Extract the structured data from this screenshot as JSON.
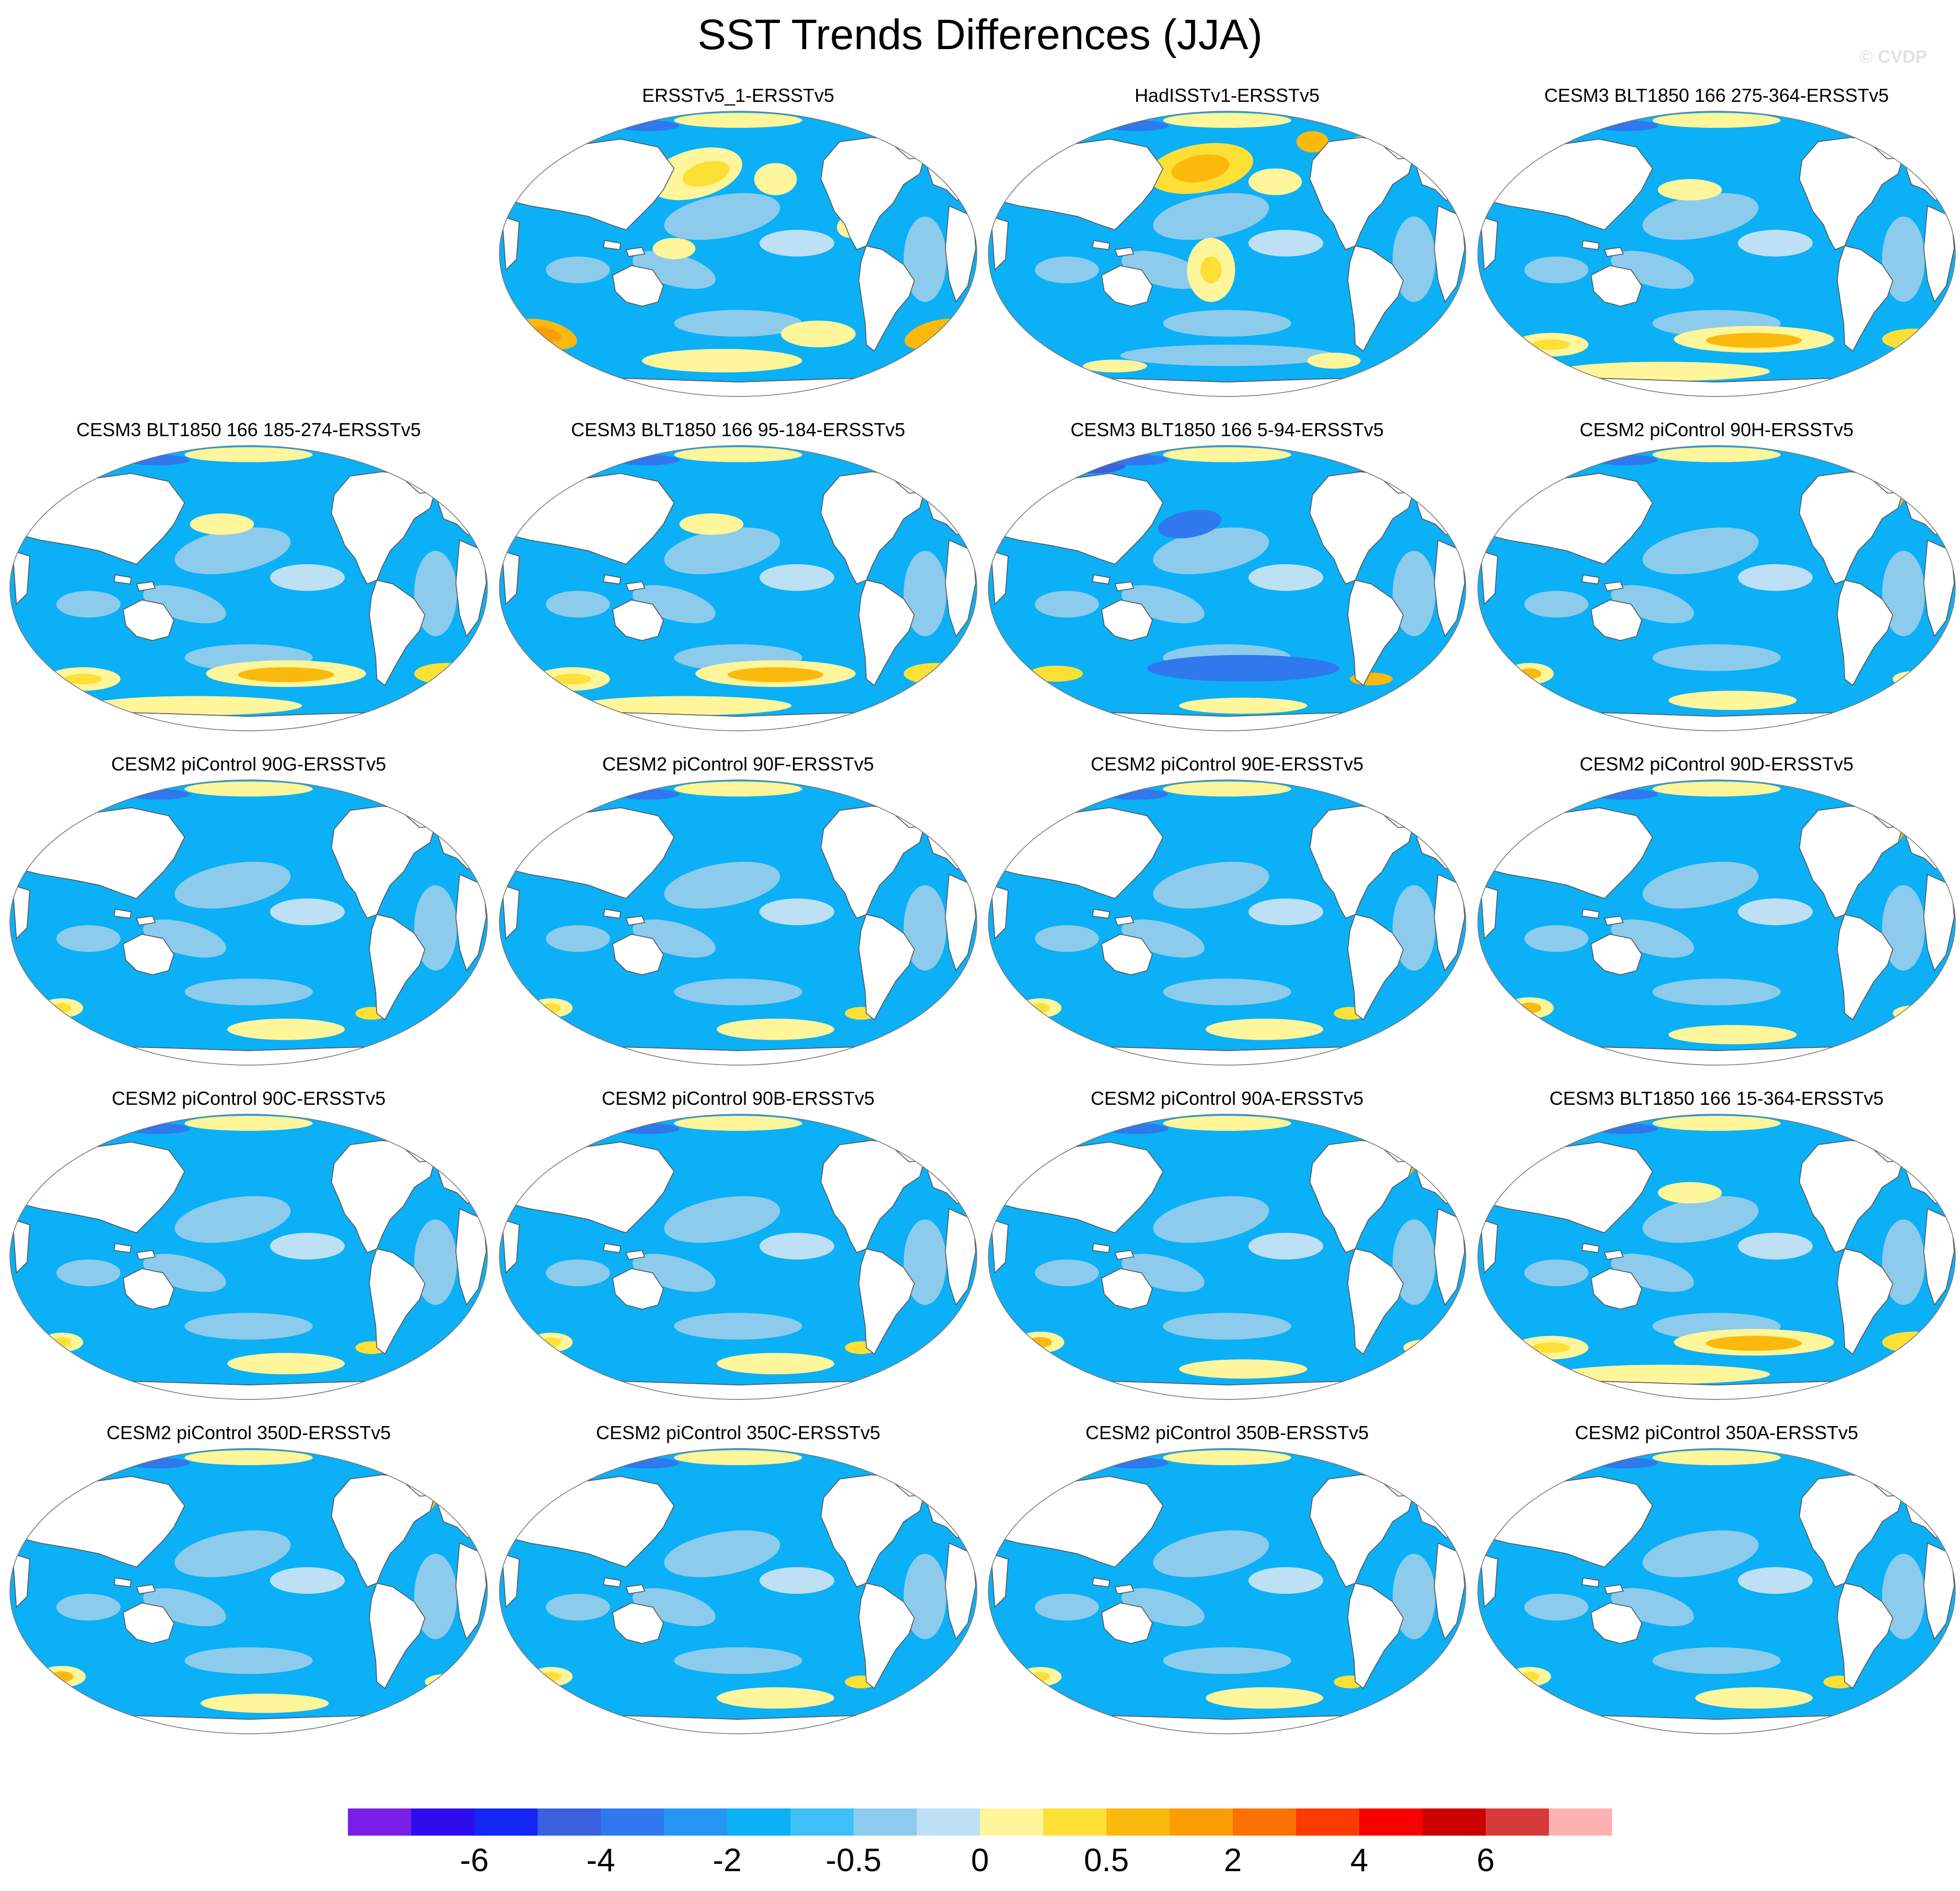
{
  "figure": {
    "title": "SST Trends Differences (JJA)",
    "watermark": "© CVDP"
  },
  "panels": [
    {
      "title": "ERSSTv5_1-ERSSTv5",
      "pattern": "ersst1"
    },
    {
      "title": "HadISSTv1-ERSSTv5",
      "pattern": "hadisst"
    },
    {
      "title": "CESM3 BLT1850 166 275-364-ERSSTv5",
      "pattern": "warmSO"
    },
    {
      "title": "CESM3 BLT1850 166 185-274-ERSSTv5",
      "pattern": "warmSO"
    },
    {
      "title": "CESM3 BLT1850 166 95-184-ERSSTv5",
      "pattern": "warmSO"
    },
    {
      "title": "CESM3 BLT1850 166 5-94-ERSSTv5",
      "pattern": "coldSO"
    },
    {
      "title": "CESM2 piControl 90H-ERSSTv5",
      "pattern": "natl"
    },
    {
      "title": "CESM2 piControl 90G-ERSSTv5",
      "pattern": "cool"
    },
    {
      "title": "CESM2 piControl 90F-ERSSTv5",
      "pattern": "cool"
    },
    {
      "title": "CESM2 piControl 90E-ERSSTv5",
      "pattern": "cool"
    },
    {
      "title": "CESM2 piControl 90D-ERSSTv5",
      "pattern": "natl"
    },
    {
      "title": "CESM2 piControl 90C-ERSSTv5",
      "pattern": "cool"
    },
    {
      "title": "CESM2 piControl 90B-ERSSTv5",
      "pattern": "cool"
    },
    {
      "title": "CESM2 piControl 90A-ERSSTv5",
      "pattern": "natl"
    },
    {
      "title": "CESM3 BLT1850 166 15-364-ERSSTv5",
      "pattern": "warmSO"
    },
    {
      "title": "CESM2 piControl 350D-ERSSTv5",
      "pattern": "natl"
    },
    {
      "title": "CESM2 piControl 350C-ERSSTv5",
      "pattern": "cool"
    },
    {
      "title": "CESM2 piControl 350B-ERSSTv5",
      "pattern": "cool"
    },
    {
      "title": "CESM2 piControl 350A-ERSSTv5",
      "pattern": "cool"
    }
  ],
  "colorbar": {
    "colors": [
      "#7b1fe8",
      "#2e0cf0",
      "#1426f5",
      "#3a5fdf",
      "#2f78ee",
      "#2596f6",
      "#0bb0f6",
      "#3cc0f6",
      "#8ccbec",
      "#bde0f4",
      "#fff59a",
      "#fde036",
      "#fbb90e",
      "#fd9d05",
      "#fd7002",
      "#fd3a00",
      "#fc0000",
      "#cc0000",
      "#d63a3a",
      "#fdb2b2"
    ],
    "labels": [
      {
        "text": "-6",
        "boundary": 2
      },
      {
        "text": "-4",
        "boundary": 4
      },
      {
        "text": "-2",
        "boundary": 6
      },
      {
        "text": "-0.5",
        "boundary": 8
      },
      {
        "text": "0",
        "boundary": 10
      },
      {
        "text": "0.5",
        "boundary": 12
      },
      {
        "text": "2",
        "boundary": 14
      },
      {
        "text": "4",
        "boundary": 16
      },
      {
        "text": "6",
        "boundary": 18
      }
    ]
  }
}
